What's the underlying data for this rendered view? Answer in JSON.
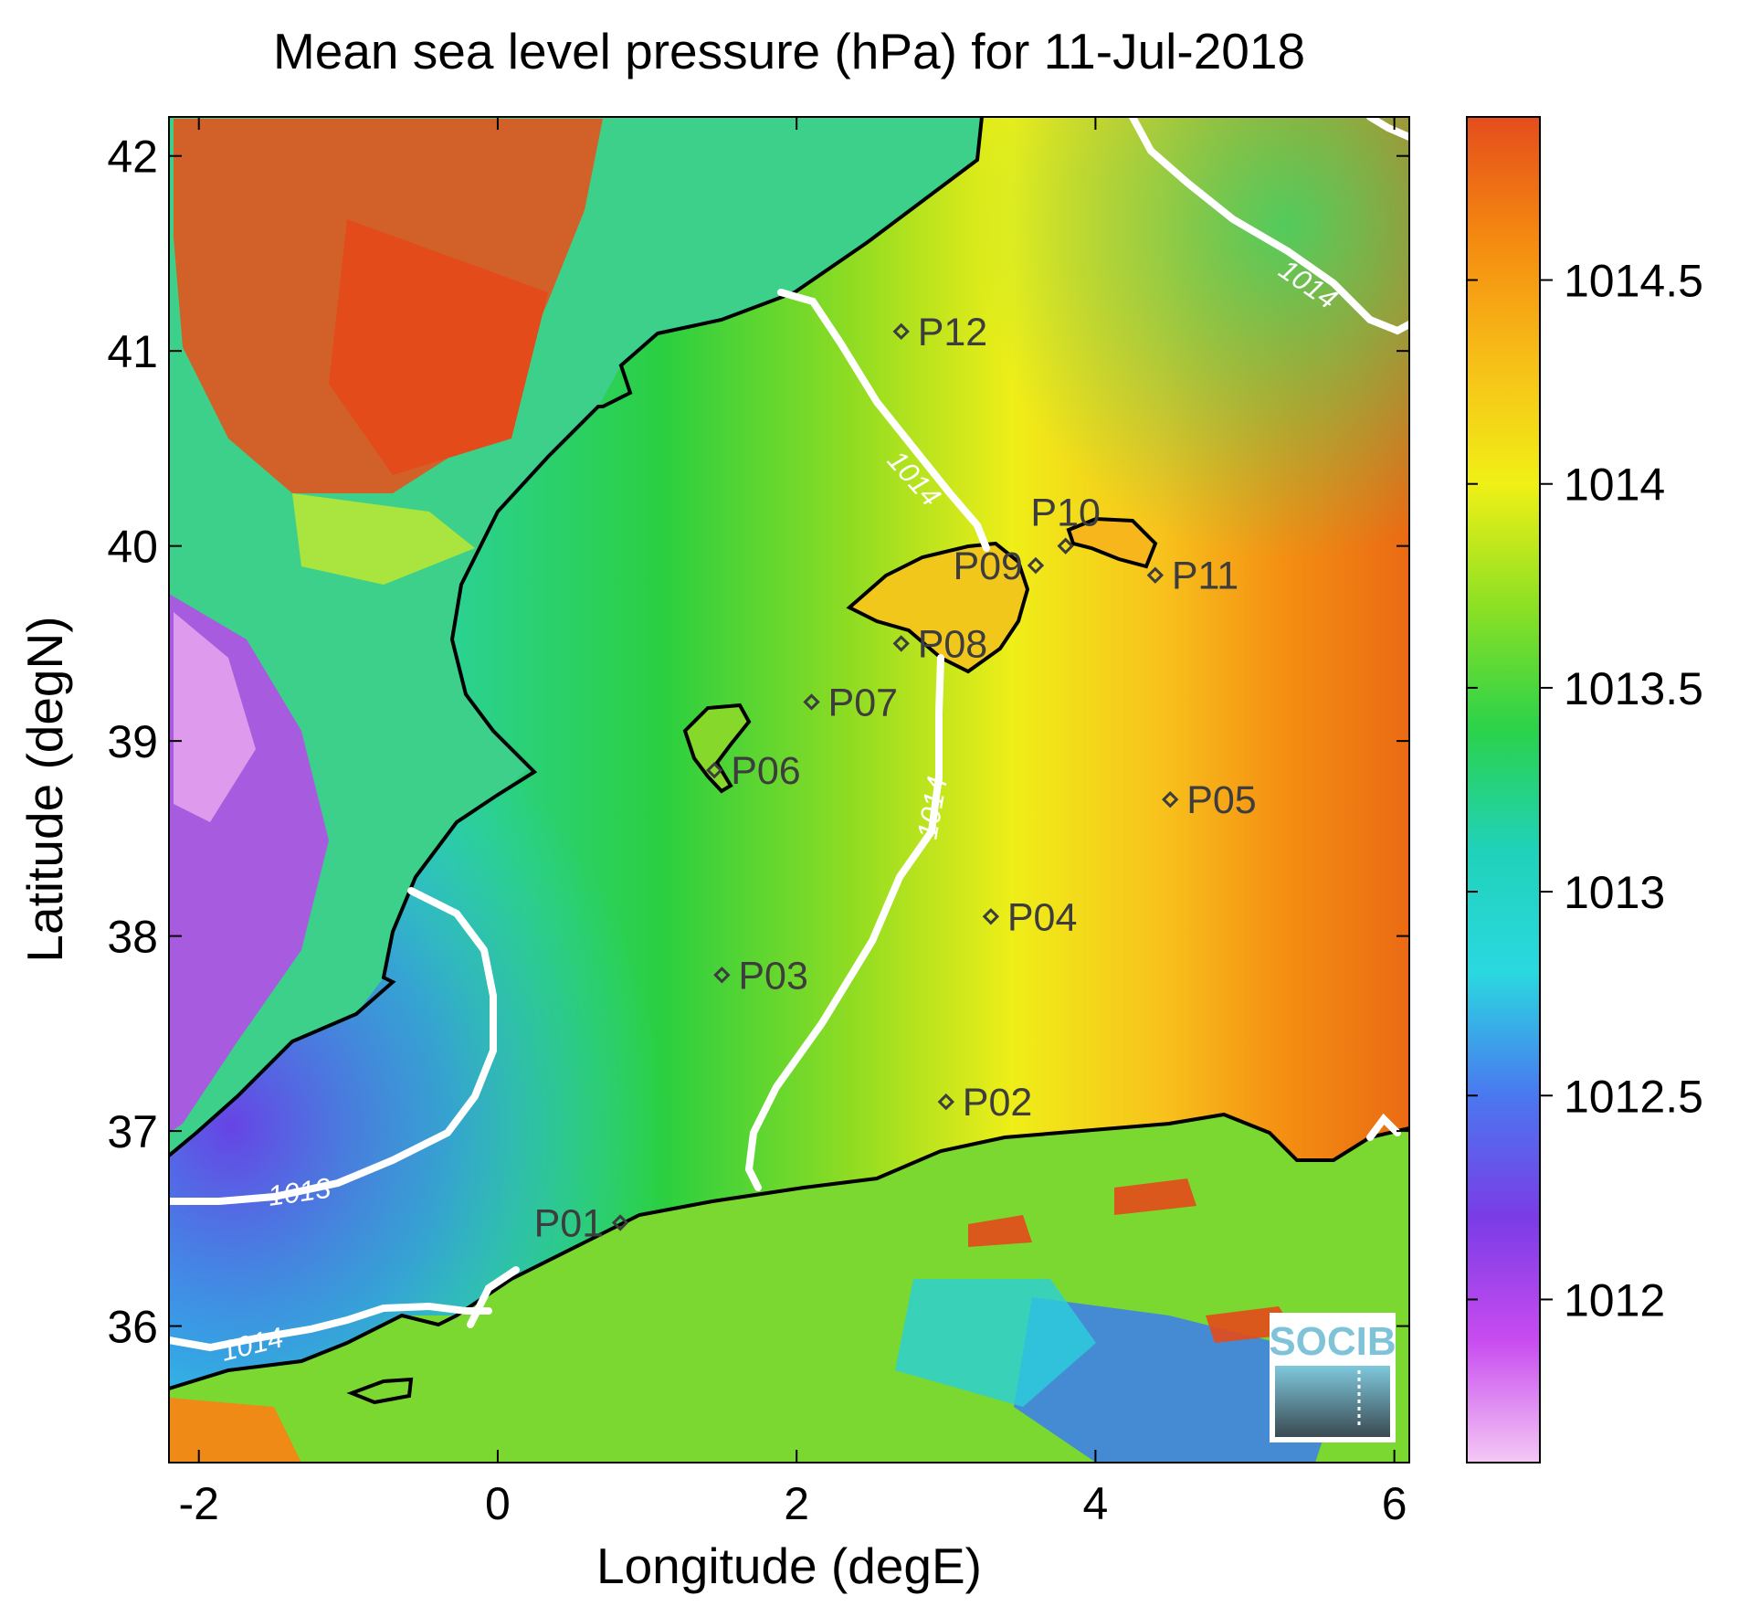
{
  "title": "Mean sea level pressure (hPa) for 11-Jul-2018",
  "chart_data": {
    "type": "heatmap",
    "title": "Mean sea level pressure (hPa) for 11-Jul-2018",
    "xlabel": "Longitude (degE)",
    "ylabel": "Latitude (degN)",
    "xlim": [
      -2.2,
      6.1
    ],
    "ylim": [
      35.3,
      42.2
    ],
    "xticks": [
      -2,
      0,
      2,
      4,
      6
    ],
    "yticks": [
      36,
      37,
      38,
      39,
      40,
      41,
      42
    ],
    "colorbar": {
      "min": 1011.6,
      "max": 1014.9,
      "ticks": [
        1012,
        1012.5,
        1013,
        1013.5,
        1014,
        1014.5
      ],
      "tick_labels": [
        "1012",
        "1012.5",
        "1013",
        "1013.5",
        "1014",
        "1014.5"
      ],
      "colors": [
        "#f4c8f4",
        "#c84cf0",
        "#7a3ce6",
        "#4a78f0",
        "#2ad8e0",
        "#20d2ba",
        "#2bd24a",
        "#8ce024",
        "#f0f016",
        "#f7bf18",
        "#f58a10",
        "#e44d1c"
      ]
    },
    "contours": [
      {
        "level": 1013,
        "label": "1013"
      },
      {
        "level": 1014,
        "label": "1014"
      }
    ],
    "stations": [
      {
        "name": "P01",
        "lon": 0.82,
        "lat": 36.53
      },
      {
        "name": "P02",
        "lon": 3.0,
        "lat": 37.15
      },
      {
        "name": "P03",
        "lon": 1.5,
        "lat": 37.8
      },
      {
        "name": "P04",
        "lon": 3.3,
        "lat": 38.1
      },
      {
        "name": "P05",
        "lon": 4.5,
        "lat": 38.7
      },
      {
        "name": "P06",
        "lon": 1.45,
        "lat": 38.85
      },
      {
        "name": "P07",
        "lon": 2.1,
        "lat": 39.2
      },
      {
        "name": "P08",
        "lon": 2.7,
        "lat": 39.5
      },
      {
        "name": "P09",
        "lon": 3.6,
        "lat": 39.9
      },
      {
        "name": "P10",
        "lon": 3.8,
        "lat": 40.0
      },
      {
        "name": "P11",
        "lon": 4.4,
        "lat": 39.85
      },
      {
        "name": "P12",
        "lon": 2.7,
        "lat": 41.1
      }
    ]
  },
  "logo": {
    "text": "SOCIB"
  }
}
